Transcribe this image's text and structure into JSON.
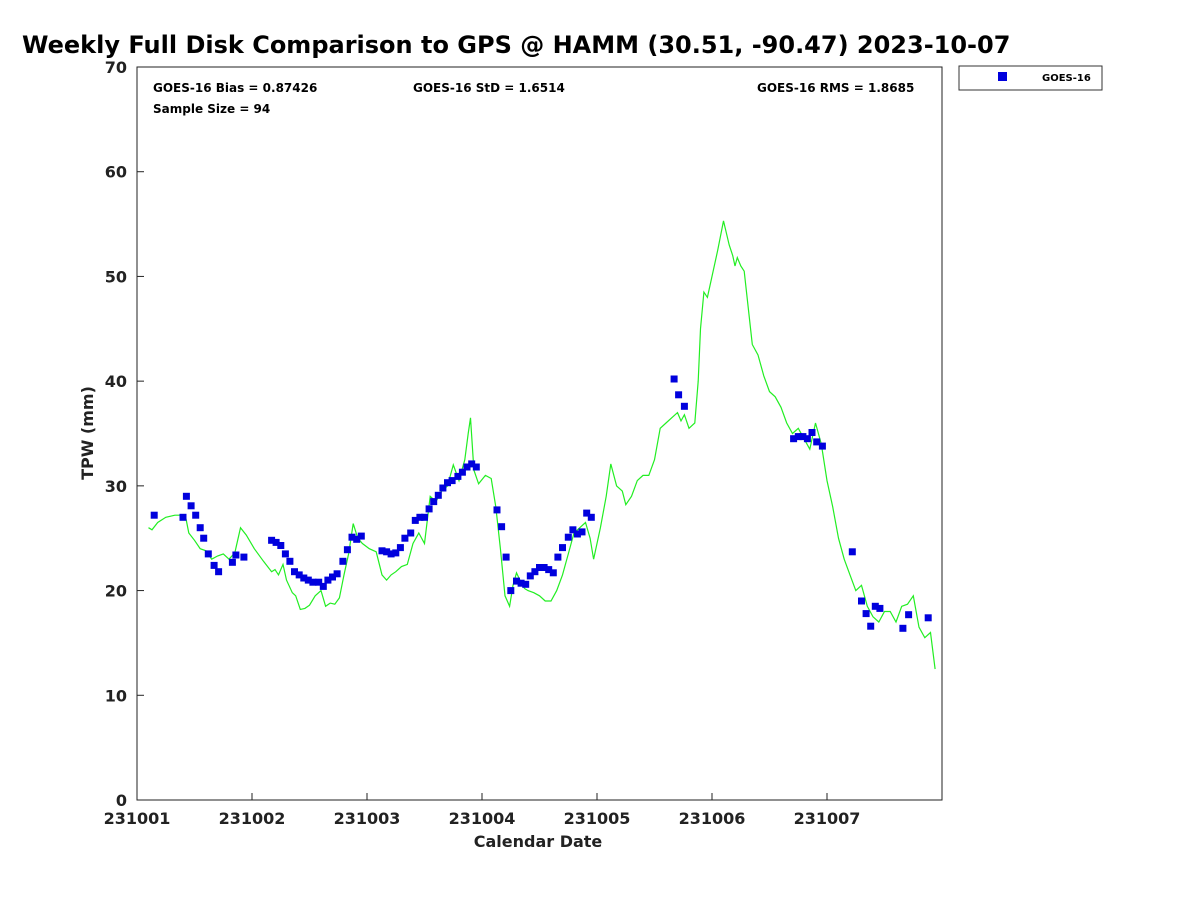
{
  "chart_data": {
    "type": "scatter",
    "title": "Weekly Full Disk Comparison to GPS @ HAMM (30.51, -90.47) 2023-10-07",
    "xlabel": "Calendar Date",
    "ylabel": "TPW (mm)",
    "xlim": [
      231001,
      231008
    ],
    "ylim": [
      0,
      70
    ],
    "xticks": [
      {
        "value": 231001,
        "label": "231001"
      },
      {
        "value": 231002,
        "label": "231002"
      },
      {
        "value": 231003,
        "label": "231003"
      },
      {
        "value": 231004,
        "label": "231004"
      },
      {
        "value": 231005,
        "label": "231005"
      },
      {
        "value": 231006,
        "label": "231006"
      },
      {
        "value": 231007,
        "label": "231007"
      }
    ],
    "yticks": [
      {
        "value": 0,
        "label": "0"
      },
      {
        "value": 10,
        "label": "10"
      },
      {
        "value": 20,
        "label": "20"
      },
      {
        "value": 30,
        "label": "30"
      },
      {
        "value": 40,
        "label": "40"
      },
      {
        "value": 50,
        "label": "50"
      },
      {
        "value": 60,
        "label": "60"
      },
      {
        "value": 70,
        "label": "70"
      }
    ],
    "grid": false,
    "legend_placement": "top-right outside",
    "stats": {
      "bias": "GOES-16 Bias = 0.87426",
      "sample_size": "Sample Size = 94",
      "std": "GOES-16 StD = 1.6514",
      "rms": "GOES-16 RMS = 1.8685"
    },
    "series": [
      {
        "name": "GOES-16",
        "kind": "scatter",
        "color": "#0000dd",
        "x": [
          231001.15,
          231001.4,
          231001.43,
          231001.47,
          231001.51,
          231001.55,
          231001.58,
          231001.62,
          231001.67,
          231001.71,
          231001.83,
          231001.86,
          231001.93,
          231002.17,
          231002.21,
          231002.25,
          231002.29,
          231002.33,
          231002.37,
          231002.41,
          231002.45,
          231002.49,
          231002.53,
          231002.58,
          231002.62,
          231002.66,
          231002.7,
          231002.74,
          231002.79,
          231002.83,
          231002.87,
          231002.91,
          231002.95,
          231003.13,
          231003.17,
          231003.21,
          231003.25,
          231003.29,
          231003.33,
          231003.38,
          231003.42,
          231003.46,
          231003.5,
          231003.54,
          231003.58,
          231003.62,
          231003.66,
          231003.7,
          231003.74,
          231003.79,
          231003.83,
          231003.87,
          231003.91,
          231003.95,
          231004.13,
          231004.17,
          231004.21,
          231004.25,
          231004.3,
          231004.34,
          231004.38,
          231004.42,
          231004.46,
          231004.5,
          231004.54,
          231004.58,
          231004.62,
          231004.66,
          231004.7,
          231004.75,
          231004.79,
          231004.83,
          231004.87,
          231004.91,
          231004.95,
          231005.67,
          231005.71,
          231005.76,
          231006.71,
          231006.75,
          231006.79,
          231006.83,
          231006.87,
          231006.91,
          231006.96,
          231007.22,
          231007.3,
          231007.34,
          231007.38,
          231007.42,
          231007.46,
          231007.66,
          231007.71,
          231007.88
        ],
        "y": [
          27.2,
          27.0,
          29.0,
          28.1,
          27.2,
          26.0,
          25.0,
          23.5,
          22.4,
          21.8,
          22.7,
          23.4,
          23.2,
          24.8,
          24.6,
          24.3,
          23.5,
          22.8,
          21.8,
          21.5,
          21.2,
          21.0,
          20.8,
          20.8,
          20.4,
          21.0,
          21.3,
          21.6,
          22.8,
          23.9,
          25.1,
          24.9,
          25.2,
          23.8,
          23.7,
          23.5,
          23.6,
          24.1,
          25.0,
          25.5,
          26.7,
          27.0,
          27.0,
          27.8,
          28.5,
          29.1,
          29.8,
          30.3,
          30.5,
          30.9,
          31.3,
          31.8,
          32.1,
          31.8,
          27.7,
          26.1,
          23.2,
          20.0,
          20.9,
          20.7,
          20.6,
          21.4,
          21.8,
          22.2,
          22.2,
          22.0,
          21.7,
          23.2,
          24.1,
          25.1,
          25.8,
          25.4,
          25.6,
          27.4,
          27.0,
          40.2,
          38.7,
          37.6,
          34.5,
          34.7,
          34.7,
          34.5,
          35.1,
          34.2,
          33.8,
          23.7,
          19.0,
          17.8,
          16.6,
          18.5,
          18.3,
          16.4,
          17.7,
          17.4
        ]
      },
      {
        "name": "",
        "kind": "line",
        "color": "#22ee22",
        "x": [
          231001.1,
          231001.13,
          231001.18,
          231001.25,
          231001.33,
          231001.42,
          231001.45,
          231001.5,
          231001.55,
          231001.6,
          231001.65,
          231001.7,
          231001.75,
          231001.8,
          231001.85,
          231001.9,
          231001.95,
          231002.02,
          231002.1,
          231002.17,
          231002.2,
          231002.23,
          231002.27,
          231002.3,
          231002.35,
          231002.38,
          231002.42,
          231002.46,
          231002.5,
          231002.55,
          231002.6,
          231002.64,
          231002.68,
          231002.72,
          231002.76,
          231002.8,
          231002.84,
          231002.88,
          231002.92,
          231002.96,
          231003.02,
          231003.08,
          231003.13,
          231003.17,
          231003.21,
          231003.25,
          231003.3,
          231003.35,
          231003.4,
          231003.45,
          231003.5,
          231003.55,
          231003.6,
          231003.65,
          231003.7,
          231003.75,
          231003.8,
          231003.85,
          231003.88,
          231003.9,
          231003.93,
          231003.97,
          231004.03,
          231004.08,
          231004.12,
          231004.16,
          231004.2,
          231004.24,
          231004.27,
          231004.3,
          231004.33,
          231004.37,
          231004.4,
          231004.45,
          231004.5,
          231004.55,
          231004.6,
          231004.65,
          231004.7,
          231004.75,
          231004.8,
          231004.85,
          231004.9,
          231004.94,
          231004.97,
          231005.03,
          231005.08,
          231005.12,
          231005.17,
          231005.22,
          231005.25,
          231005.3,
          231005.35,
          231005.4,
          231005.45,
          231005.5,
          231005.55,
          231005.6,
          231005.65,
          231005.7,
          231005.73,
          231005.76,
          231005.8,
          231005.85,
          231005.88,
          231005.9,
          231005.93,
          231005.96,
          231006.0,
          231006.05,
          231006.1,
          231006.15,
          231006.18,
          231006.2,
          231006.22,
          231006.25,
          231006.28,
          231006.3,
          231006.35,
          231006.4,
          231006.45,
          231006.5,
          231006.55,
          231006.6,
          231006.65,
          231006.7,
          231006.75,
          231006.8,
          231006.85,
          231006.9,
          231006.95,
          231007.0,
          231007.05,
          231007.1,
          231007.15,
          231007.2,
          231007.25,
          231007.3,
          231007.35,
          231007.4,
          231007.45,
          231007.5,
          231007.55,
          231007.6,
          231007.65,
          231007.7,
          231007.75,
          231007.8,
          231007.85,
          231007.9,
          231007.94
        ],
        "y": [
          26.0,
          25.8,
          26.5,
          27.0,
          27.2,
          27.2,
          25.5,
          24.8,
          24.0,
          23.8,
          23.0,
          23.3,
          23.5,
          23.0,
          23.6,
          26.0,
          25.3,
          24.0,
          22.8,
          21.8,
          22.0,
          21.5,
          22.5,
          21.0,
          19.8,
          19.5,
          18.2,
          18.3,
          18.6,
          19.5,
          20.0,
          18.5,
          18.8,
          18.7,
          19.3,
          21.5,
          23.5,
          26.4,
          25.0,
          24.5,
          24.0,
          23.7,
          21.5,
          21.0,
          21.5,
          21.8,
          22.3,
          22.5,
          24.5,
          25.5,
          24.5,
          29.0,
          28.5,
          29.5,
          30.0,
          32.0,
          30.5,
          32.5,
          35.0,
          36.5,
          31.5,
          30.2,
          31.0,
          30.7,
          28.0,
          24.0,
          19.5,
          18.5,
          20.5,
          21.7,
          21.0,
          20.2,
          20.0,
          19.8,
          19.5,
          19.0,
          19.0,
          20.0,
          21.5,
          23.5,
          25.5,
          26.0,
          26.5,
          25.0,
          23.0,
          26.0,
          29.0,
          32.1,
          30.0,
          29.5,
          28.2,
          29.0,
          30.5,
          31.0,
          31.0,
          32.5,
          35.5,
          36.0,
          36.5,
          37.0,
          36.2,
          36.8,
          35.5,
          36.0,
          40.0,
          45.0,
          48.5,
          48.0,
          50.0,
          52.5,
          55.3,
          53.0,
          52.0,
          51.0,
          51.8,
          51.0,
          50.5,
          48.5,
          43.5,
          42.5,
          40.5,
          39.0,
          38.5,
          37.5,
          36.0,
          35.0,
          35.5,
          34.5,
          33.5,
          36.0,
          34.0,
          30.5,
          28.0,
          25.0,
          23.0,
          21.5,
          20.0,
          20.5,
          18.5,
          17.5,
          17.0,
          18.0,
          18.0,
          17.0,
          18.5,
          18.7,
          19.5,
          16.5,
          15.5,
          16.0,
          12.5
        ]
      }
    ]
  }
}
